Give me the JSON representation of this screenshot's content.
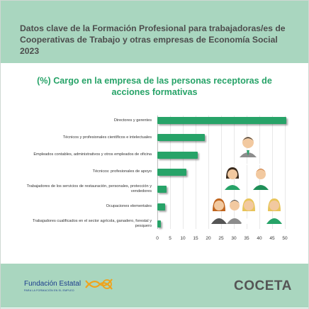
{
  "header": {
    "title": "Datos clave de la Formación Profesional para trabajadoras/es de Cooperativas de Trabajo y otras empresas de Economía Social 2023"
  },
  "chart_data": {
    "type": "bar",
    "orientation": "horizontal",
    "title": "(%) Cargo en la empresa de las personas receptoras de acciones formativas",
    "categories": [
      "Directores y gerentes",
      "Técnicos y profesionales científicos e intelectuales",
      "Empleados contables, administrativos y otros empleados de oficina",
      "Técnicos: profesionales de apoyo",
      "Trabajadores de los servicios de restauración, personales, protección y vendedores",
      "Ocupaciones elementales",
      "Trabajadores cualificados en el sector agrícola, ganadero, forestal y pesquero"
    ],
    "values": [
      50.5,
      18.5,
      15.8,
      11.5,
      3.5,
      3.0,
      1.5
    ],
    "xlim": [
      0,
      50
    ],
    "xticks": [
      "0",
      "5",
      "10",
      "15",
      "20",
      "25",
      "30",
      "35",
      "40",
      "45",
      "50"
    ],
    "grid": true,
    "bar_color": "#27a368"
  },
  "footer": {
    "fundacion_name": "Fundación Estatal",
    "fundacion_sub": "PARA LA FORMACIÓN EN EL EMPLEO",
    "coceta": "COCETA"
  }
}
